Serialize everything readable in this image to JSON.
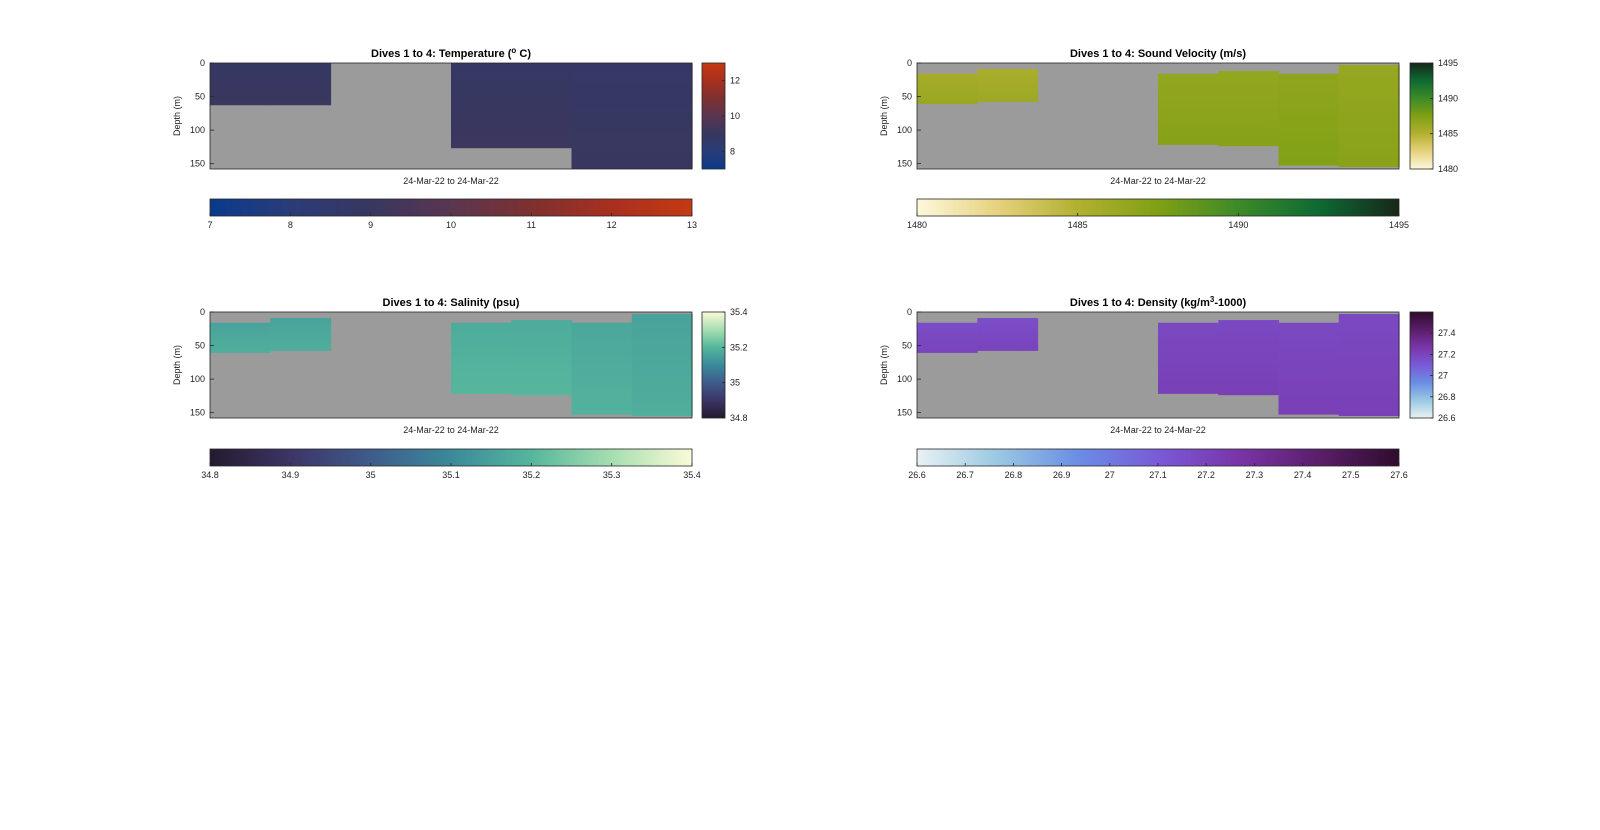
{
  "chart_data": [
    {
      "type": "heatmap",
      "title": "Dives 1 to 4: Temperature (",
      "title_sup": "o",
      "title_end": " C)",
      "ylabel": "Depth (m)",
      "xlabel": "24-Mar-22 to 24-Mar-22",
      "ylim": [
        0,
        158
      ],
      "yticks": [
        0,
        50,
        100,
        150
      ],
      "profile_columns": 8,
      "background_color": "#9b9b9b",
      "colormap": [
        "#0a3a8c",
        "#2a3c78",
        "#383760",
        "#5a3650",
        "#7e3030",
        "#a8301f",
        "#c43a12"
      ],
      "crange": [
        7,
        13
      ],
      "vertical_colorbar_ticks": [
        8,
        10,
        12
      ],
      "colorbar_ticks": [
        7,
        8,
        9,
        10,
        11,
        12,
        13
      ],
      "profiles": [
        {
          "column": 1,
          "top": 0,
          "bottom": 63,
          "value": 9.0
        },
        {
          "column": 2,
          "top": 0,
          "bottom": 63,
          "value": 9.0
        },
        {
          "column": 5,
          "top": 0,
          "bottom": 127,
          "value": 9.0
        },
        {
          "column": 6,
          "top": 0,
          "bottom": 127,
          "value": 9.0
        },
        {
          "column": 7,
          "top": 0,
          "bottom": 158,
          "value": 8.9
        },
        {
          "column": 8,
          "top": 0,
          "bottom": 158,
          "value": 8.9
        }
      ]
    },
    {
      "type": "heatmap",
      "title": "Dives 1 to 4: Sound Velocity (m/s)",
      "ylabel": "Depth (m)",
      "xlabel": "24-Mar-22 to 24-Mar-22",
      "ylim": [
        0,
        158
      ],
      "yticks": [
        0,
        50,
        100,
        150
      ],
      "profile_columns": 8,
      "background_color": "#9b9b9b",
      "colormap": [
        "#fdf8dc",
        "#e6d27e",
        "#b2b030",
        "#80a014",
        "#3e8a28",
        "#0e6a34",
        "#17271a"
      ],
      "crange": [
        1480,
        1495
      ],
      "vertical_colorbar_ticks": [
        1480,
        1485,
        1490,
        1495
      ],
      "colorbar_ticks": [
        1480,
        1485,
        1490,
        1495
      ],
      "profiles": [
        {
          "column": 1,
          "top": 16,
          "bottom": 61,
          "value": 1486.0
        },
        {
          "column": 2,
          "top": 9,
          "bottom": 58,
          "value": 1485.8
        },
        {
          "column": 5,
          "top": 16,
          "bottom": 122,
          "value": 1486.9
        },
        {
          "column": 6,
          "top": 12,
          "bottom": 124,
          "value": 1486.9
        },
        {
          "column": 7,
          "top": 16,
          "bottom": 153,
          "value": 1487.1
        },
        {
          "column": 8,
          "top": 3,
          "bottom": 155,
          "value": 1486.8
        }
      ]
    },
    {
      "type": "heatmap",
      "title": "Dives 1 to 4: Salinity (psu)",
      "ylabel": "Depth (m)",
      "xlabel": "24-Mar-22 to 24-Mar-22",
      "ylim": [
        0,
        158
      ],
      "yticks": [
        0,
        50,
        100,
        150
      ],
      "profile_columns": 8,
      "background_color": "#9b9b9b",
      "colormap": [
        "#241a2e",
        "#3c3566",
        "#3f5b8c",
        "#3a8a9a",
        "#55b69c",
        "#a6deb0",
        "#fbfbd8"
      ],
      "crange": [
        34.8,
        35.4
      ],
      "vertical_colorbar_ticks": [
        34.8,
        35,
        35.2,
        35.4
      ],
      "colorbar_ticks": [
        34.8,
        34.9,
        35,
        35.1,
        35.2,
        35.3,
        35.4
      ],
      "profiles": [
        {
          "column": 1,
          "top": 16,
          "bottom": 61,
          "value": 35.17
        },
        {
          "column": 2,
          "top": 9,
          "bottom": 58,
          "value": 35.17
        },
        {
          "column": 5,
          "top": 16,
          "bottom": 122,
          "value": 35.19
        },
        {
          "column": 6,
          "top": 12,
          "bottom": 124,
          "value": 35.19
        },
        {
          "column": 7,
          "top": 16,
          "bottom": 153,
          "value": 35.18
        },
        {
          "column": 8,
          "top": 3,
          "bottom": 155,
          "value": 35.17
        }
      ]
    },
    {
      "type": "heatmap",
      "title": "Dives 1 to 4: Density (kg/m",
      "title_sup": "3",
      "title_end": "-1000)",
      "ylabel": "Depth (m)",
      "xlabel": "24-Mar-22 to 24-Mar-22",
      "ylim": [
        0,
        158
      ],
      "yticks": [
        0,
        50,
        100,
        150
      ],
      "profile_columns": 8,
      "background_color": "#9b9b9b",
      "colormap": [
        "#e8f2f4",
        "#9ac8e2",
        "#6a8ee4",
        "#7a5ad8",
        "#7a35a8",
        "#5a1e6a",
        "#2f0c2c"
      ],
      "crange": [
        26.6,
        27.6
      ],
      "vertical_colorbar_ticks": [
        26.6,
        26.8,
        27,
        27.2,
        27.4
      ],
      "colorbar_ticks": [
        26.6,
        26.7,
        26.8,
        26.9,
        27,
        27.1,
        27.2,
        27.3,
        27.4,
        27.5,
        27.6
      ],
      "profiles": [
        {
          "column": 1,
          "top": 16,
          "bottom": 61,
          "value": 27.18
        },
        {
          "column": 2,
          "top": 9,
          "bottom": 58,
          "value": 27.18
        },
        {
          "column": 5,
          "top": 16,
          "bottom": 122,
          "value": 27.2
        },
        {
          "column": 6,
          "top": 12,
          "bottom": 124,
          "value": 27.2
        },
        {
          "column": 7,
          "top": 16,
          "bottom": 153,
          "value": 27.2
        },
        {
          "column": 8,
          "top": 3,
          "bottom": 155,
          "value": 27.2
        }
      ]
    }
  ]
}
